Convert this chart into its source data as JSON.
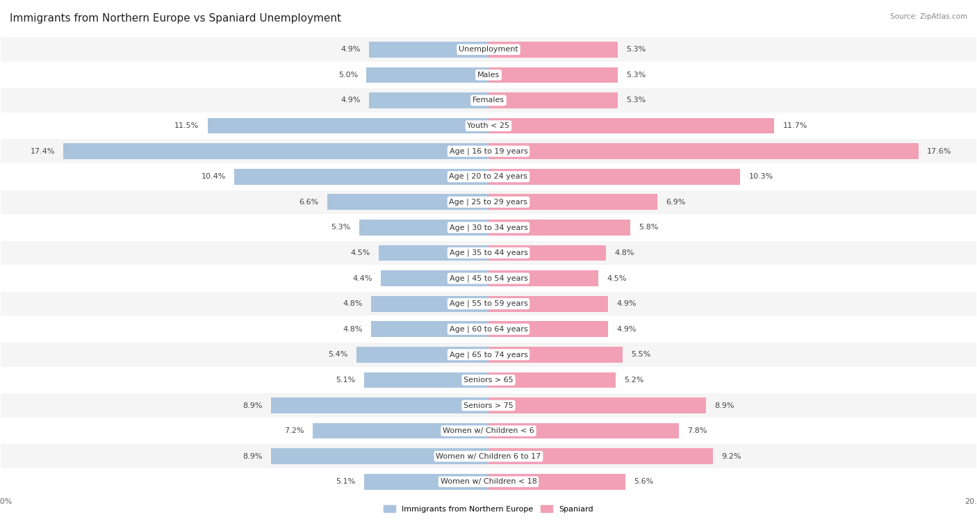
{
  "title": "Immigrants from Northern Europe vs Spaniard Unemployment",
  "source": "Source: ZipAtlas.com",
  "categories": [
    "Unemployment",
    "Males",
    "Females",
    "Youth < 25",
    "Age | 16 to 19 years",
    "Age | 20 to 24 years",
    "Age | 25 to 29 years",
    "Age | 30 to 34 years",
    "Age | 35 to 44 years",
    "Age | 45 to 54 years",
    "Age | 55 to 59 years",
    "Age | 60 to 64 years",
    "Age | 65 to 74 years",
    "Seniors > 65",
    "Seniors > 75",
    "Women w/ Children < 6",
    "Women w/ Children 6 to 17",
    "Women w/ Children < 18"
  ],
  "left_values": [
    4.9,
    5.0,
    4.9,
    11.5,
    17.4,
    10.4,
    6.6,
    5.3,
    4.5,
    4.4,
    4.8,
    4.8,
    5.4,
    5.1,
    8.9,
    7.2,
    8.9,
    5.1
  ],
  "right_values": [
    5.3,
    5.3,
    5.3,
    11.7,
    17.6,
    10.3,
    6.9,
    5.8,
    4.8,
    4.5,
    4.9,
    4.9,
    5.5,
    5.2,
    8.9,
    7.8,
    9.2,
    5.6
  ],
  "left_color": "#aac4de",
  "right_color": "#f2a0b5",
  "bar_height": 0.62,
  "xlim": 20.0,
  "background_color": "#ffffff",
  "row_bg_even": "#f5f5f5",
  "row_bg_odd": "#ffffff",
  "legend_left": "Immigrants from Northern Europe",
  "legend_right": "Spaniard",
  "title_fontsize": 11,
  "label_fontsize": 8,
  "value_fontsize": 8,
  "axis_label_fontsize": 8,
  "row_separator_color": "#dddddd"
}
